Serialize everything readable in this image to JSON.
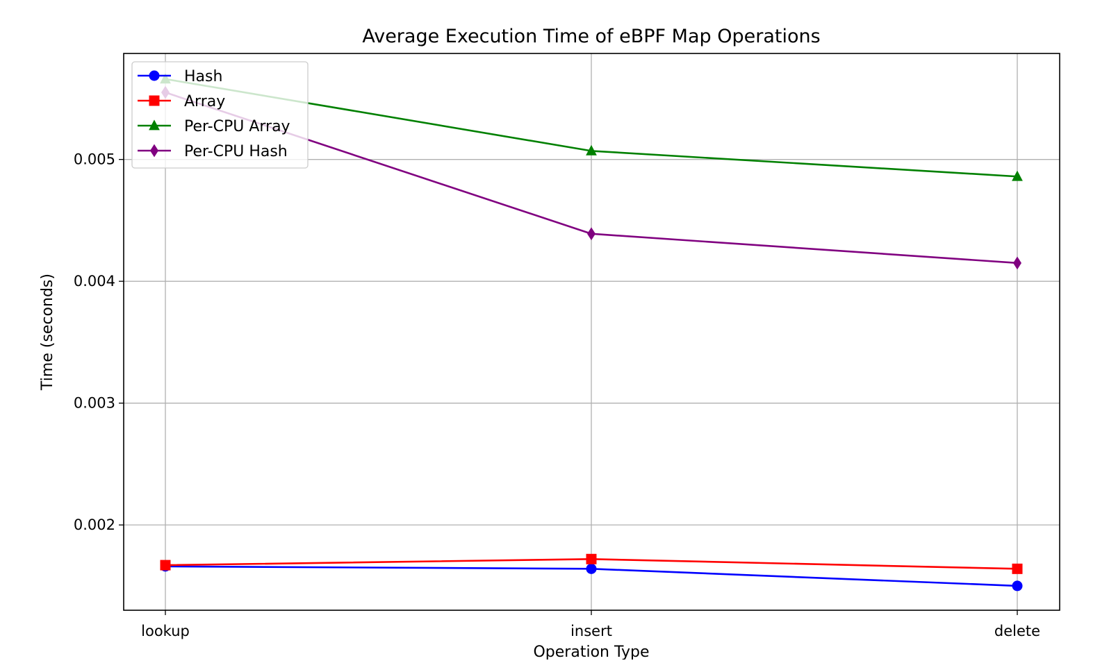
{
  "chart_data": {
    "type": "line",
    "title": "Average Execution Time of eBPF Map Operations",
    "xlabel": "Operation Type",
    "ylabel": "Time (seconds)",
    "categories": [
      "lookup",
      "insert",
      "delete"
    ],
    "ylim": [
      0.0013,
      0.00587
    ],
    "yticks": [
      0.002,
      0.003,
      0.004,
      0.005
    ],
    "ytick_labels": [
      "0.002",
      "0.003",
      "0.004",
      "0.005"
    ],
    "grid": true,
    "legend_position": "upper left",
    "series": [
      {
        "name": "Hash",
        "color": "#0000ff",
        "marker": "circle",
        "values": [
          0.00166,
          0.00164,
          0.0015
        ]
      },
      {
        "name": "Array",
        "color": "#ff0000",
        "marker": "square",
        "values": [
          0.00167,
          0.00172,
          0.00164
        ]
      },
      {
        "name": "Per-CPU Array",
        "color": "#008000",
        "marker": "triangle",
        "values": [
          0.00566,
          0.00507,
          0.00486
        ]
      },
      {
        "name": "Per-CPU Hash",
        "color": "#800080",
        "marker": "diamond",
        "values": [
          0.00555,
          0.00439,
          0.00415
        ]
      }
    ]
  }
}
